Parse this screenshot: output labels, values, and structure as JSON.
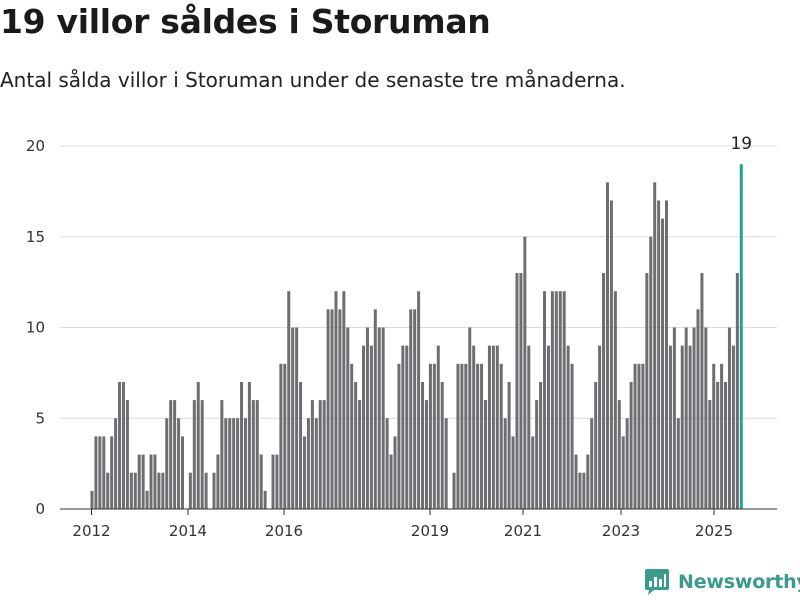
{
  "title": "19 villor såldes i Storuman",
  "subtitle": "Antal sålda villor i Storuman under de senaste tre månaderna.",
  "brand": {
    "name": "Newsworthy",
    "icon": "newsworthy-logo-icon",
    "color": "#3a9b8c"
  },
  "colors": {
    "bar": "#6e6d72",
    "highlight": "#23a192",
    "grid": "#dcdcdc",
    "axis": "#333333"
  },
  "chart_data": {
    "type": "bar",
    "title": "19 villor såldes i Storuman",
    "xlabel": "",
    "ylabel": "",
    "ylim": [
      0,
      20
    ],
    "yticks": [
      0,
      5,
      10,
      15,
      20
    ],
    "xticks": [
      "2012",
      "2014",
      "2016",
      "2019",
      "2021",
      "2023",
      "2025"
    ],
    "grid": true,
    "values": [
      1,
      4,
      4,
      4,
      2,
      4,
      5,
      7,
      7,
      6,
      2,
      2,
      3,
      3,
      1,
      3,
      3,
      2,
      2,
      5,
      6,
      6,
      5,
      4,
      0,
      2,
      6,
      7,
      6,
      2,
      0,
      2,
      3,
      6,
      5,
      5,
      5,
      5,
      7,
      5,
      7,
      6,
      6,
      3,
      1,
      0,
      3,
      3,
      8,
      8,
      12,
      10,
      10,
      7,
      4,
      5,
      6,
      5,
      6,
      6,
      11,
      11,
      12,
      11,
      12,
      10,
      8,
      7,
      6,
      9,
      10,
      9,
      11,
      10,
      10,
      5,
      3,
      4,
      8,
      9,
      9,
      11,
      11,
      12,
      7,
      6,
      8,
      8,
      9,
      7,
      5,
      0,
      2,
      8,
      8,
      8,
      10,
      9,
      8,
      8,
      6,
      9,
      9,
      9,
      8,
      5,
      7,
      4,
      13,
      13,
      15,
      9,
      4,
      6,
      7,
      12,
      9,
      12,
      12,
      12,
      12,
      9,
      8,
      3,
      2,
      2,
      3,
      5,
      7,
      9,
      13,
      18,
      17,
      12,
      6,
      4,
      5,
      7,
      8,
      8,
      8,
      13,
      15,
      18,
      17,
      16,
      17,
      9,
      10,
      5,
      9,
      10,
      9,
      10,
      11,
      13,
      10,
      6,
      8,
      7,
      8,
      7,
      10,
      9,
      13,
      19
    ],
    "highlight": {
      "index": 165,
      "value": 19,
      "label": "19"
    }
  }
}
